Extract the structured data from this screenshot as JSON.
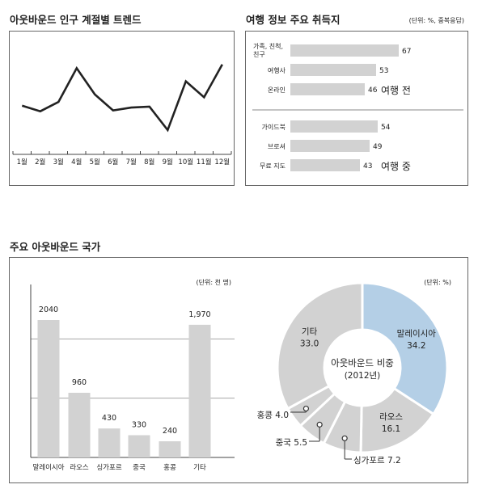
{
  "chart_data": [
    {
      "type": "line",
      "title": "아웃바운드 인구 계절별 트렌드",
      "categories": [
        "1월",
        "2월",
        "3월",
        "4월",
        "5월",
        "6월",
        "7월",
        "8월",
        "9월",
        "10월",
        "11월",
        "12월"
      ],
      "values": [
        52,
        46,
        56,
        92,
        64,
        47,
        50,
        51,
        26,
        78,
        61,
        96
      ],
      "ylim": [
        0,
        120
      ],
      "grid": false
    },
    {
      "type": "bar",
      "orientation": "horizontal",
      "title": "여행 정보 주요 취득지",
      "unit_note": "(단위: %, 중복응답)",
      "xlim": [
        0,
        100
      ],
      "groups": [
        {
          "name": "여행 전",
          "categories": [
            "가족, 친척, 친구",
            "여행사",
            "온라인"
          ],
          "category_lines": [
            [
              "가족, 친척,",
              "친구"
            ],
            [
              "여행사"
            ],
            [
              "온라인"
            ]
          ],
          "values": [
            67,
            53,
            46
          ]
        },
        {
          "name": "여행 중",
          "categories": [
            "가이드북",
            "브로셔",
            "무료 지도"
          ],
          "category_lines": [
            [
              "가이드북"
            ],
            [
              "브로셔"
            ],
            [
              "무료 지도"
            ]
          ],
          "values": [
            54,
            49,
            43
          ]
        }
      ]
    },
    {
      "type": "bar",
      "title": "주요 아웃바운드 국가",
      "unit_note": "(단위: 천 명)",
      "categories": [
        "말레이시아",
        "라오스",
        "싱가포르",
        "중국",
        "홍콩",
        "기타"
      ],
      "values": [
        2040,
        960,
        430,
        330,
        240,
        1970
      ],
      "value_labels": [
        "2040",
        "960",
        "430",
        "330",
        "240",
        "1,970"
      ],
      "ylim": [
        0,
        2640
      ],
      "gridlines": [
        880,
        1760
      ]
    },
    {
      "type": "pie",
      "variant": "donut",
      "unit_note": "(단위: %)",
      "center_label": [
        "아웃바운드 비중",
        "(2012년)"
      ],
      "slices": [
        {
          "label": "말레이시아",
          "value": 34.2,
          "value_text": "34.2",
          "color": "#b4cfe6"
        },
        {
          "label": "라오스",
          "value": 16.1,
          "value_text": "16.1",
          "color": "#d2d2d2"
        },
        {
          "label": "싱가포르",
          "value": 7.2,
          "value_text": "7.2",
          "color": "#d2d2d2"
        },
        {
          "label": "중국",
          "value": 5.5,
          "value_text": "5.5",
          "color": "#d2d2d2"
        },
        {
          "label": "홍콩",
          "value": 4.0,
          "value_text": "4.0",
          "color": "#d2d2d2"
        },
        {
          "label": "기타",
          "value": 33.0,
          "value_text": "33.0",
          "color": "#d2d2d2"
        }
      ]
    }
  ],
  "colors": {
    "bar": "#d2d2d2",
    "line": "#222222",
    "accent": "#b4cfe6",
    "frame": "#666666"
  }
}
